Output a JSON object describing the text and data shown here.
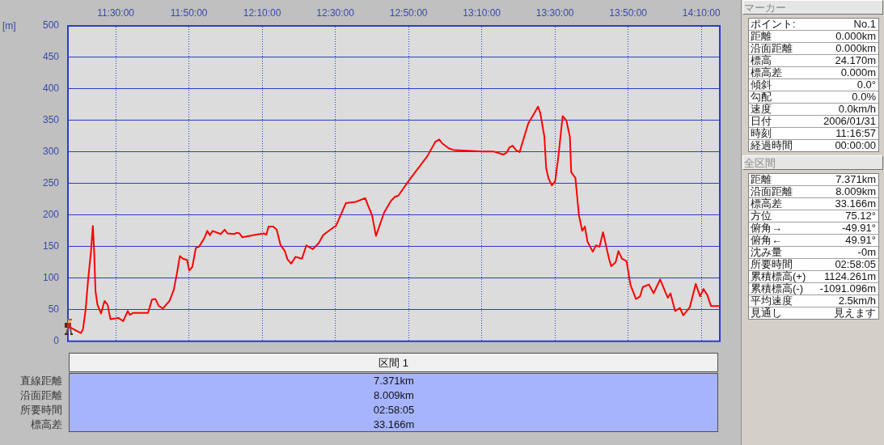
{
  "chart_data": [
    {
      "type": "line",
      "ylabel": "[m]",
      "x": [
        11.2825,
        11.341,
        11.351,
        11.363,
        11.375,
        11.387,
        11.396,
        11.402,
        11.408,
        11.417,
        11.433,
        11.449,
        11.463,
        11.476,
        11.512,
        11.534,
        11.555,
        11.564,
        11.58,
        11.647,
        11.665,
        11.681,
        11.696,
        11.715,
        11.745,
        11.764,
        11.779,
        11.792,
        11.806,
        11.825,
        11.835,
        11.849,
        11.865,
        11.88,
        11.904,
        11.917,
        11.929,
        11.941,
        11.978,
        11.996,
        12.009,
        12.039,
        12.052,
        12.064,
        12.076,
        12.125,
        12.174,
        12.186,
        12.196,
        12.217,
        12.233,
        12.25,
        12.27,
        12.282,
        12.299,
        12.319,
        12.348,
        12.368,
        12.397,
        12.425,
        12.444,
        12.458,
        12.493,
        12.503,
        12.548,
        12.593,
        12.636,
        12.648,
        12.667,
        12.685,
        12.703,
        12.722,
        12.752,
        12.771,
        12.787,
        12.833,
        12.918,
        12.955,
        12.973,
        12.986,
        13.016,
        13.041,
        13.17,
        13.219,
        13.265,
        13.28,
        13.292,
        13.307,
        13.323,
        13.339,
        13.378,
        13.403,
        13.423,
        13.433,
        13.452,
        13.46,
        13.471,
        13.486,
        13.501,
        13.515,
        13.535,
        13.552,
        13.568,
        13.574,
        13.593,
        13.609,
        13.624,
        13.636,
        13.648,
        13.672,
        13.687,
        13.703,
        13.719,
        13.746,
        13.756,
        13.776,
        13.789,
        13.805,
        13.826,
        13.844,
        13.869,
        13.887,
        13.9,
        13.928,
        13.949,
        13.979,
        14.004,
        14.014,
        14.026,
        14.047,
        14.069,
        14.084,
        14.114,
        14.141,
        14.161,
        14.176,
        14.194,
        14.21,
        14.2506
      ],
      "series": [
        {
          "color": "#ff0000",
          "values": [
            24,
            13,
            19,
            50,
            100,
            141,
            183,
            141,
            79,
            58,
            44,
            64,
            58,
            35,
            37,
            32,
            48,
            42,
            45,
            45,
            66,
            67,
            56,
            52,
            64,
            81,
            108,
            135,
            131,
            129,
            112,
            118,
            148,
            150,
            164,
            175,
            168,
            175,
            170,
            177,
            171,
            170,
            172,
            171,
            165,
            168,
            171,
            169,
            182,
            182,
            177,
            153,
            143,
            130,
            123,
            134,
            131,
            152,
            146,
            156,
            168,
            172,
            181,
            183,
            219,
            221,
            227,
            216,
            200,
            167,
            185,
            204,
            222,
            229,
            231,
            254,
            293,
            316,
            320,
            314,
            306,
            303,
            301,
            301,
            296,
            299,
            307,
            310,
            303,
            300,
            345,
            360,
            372,
            362,
            324,
            274,
            258,
            247,
            254,
            291,
            357,
            350,
            324,
            268,
            259,
            200,
            175,
            182,
            158,
            142,
            152,
            150,
            173,
            131,
            119,
            125,
            143,
            131,
            127,
            89,
            67,
            71,
            86,
            90,
            76,
            98,
            77,
            69,
            76,
            48,
            53,
            41,
            54,
            91,
            71,
            83,
            73,
            56,
            56
          ]
        }
      ],
      "xlim": [
        11.2825,
        14.2506
      ],
      "ylim": [
        0,
        500
      ],
      "xticks": [
        {
          "value": 11.5,
          "label": "11:30:00"
        },
        {
          "value": 11.8333,
          "label": "11:50:00"
        },
        {
          "value": 12.1667,
          "label": "12:10:00"
        },
        {
          "value": 12.5,
          "label": "12:30:00"
        },
        {
          "value": 12.8333,
          "label": "12:50:00"
        },
        {
          "value": 13.1667,
          "label": "13:10:00"
        },
        {
          "value": 13.5,
          "label": "13:30:00"
        },
        {
          "value": 13.8333,
          "label": "13:50:00"
        },
        {
          "value": 14.1667,
          "label": "14:10:00"
        }
      ],
      "yticks": [
        0,
        50,
        100,
        150,
        200,
        250,
        300,
        350,
        400,
        450,
        500
      ],
      "grid": true,
      "marker": "none"
    },
    {
      "type": "other",
      "title": "区間 1",
      "annotations": [
        "直線距離",
        "7.371km",
        "沿面距離",
        "8.009km",
        "所要時間",
        "02:58:05",
        "標高差",
        "33.166m"
      ]
    },
    {
      "type": "other",
      "title": "マーカー",
      "annotations": [
        "ポイント:",
        "No.1",
        "距離",
        "0.000km",
        "沿面距離",
        "0.000km",
        "標高",
        "24.170m",
        "標高差",
        "0.000m",
        "傾斜",
        "0.0°",
        "勾配",
        "0.0%",
        "速度",
        "0.0km/h",
        "日付",
        "2006/01/31",
        "時刻",
        "11:16:57",
        "経過時間",
        "00:00:00"
      ]
    },
    {
      "type": "other",
      "title": "全区間",
      "annotations": [
        "距離",
        "7.371km",
        "沿面距離",
        "8.009km",
        "標高差",
        "33.166m",
        "方位",
        "75.12°",
        "俯角→",
        "-49.91°",
        "俯角←",
        "49.91°",
        "沈み量",
        "-0m",
        "所要時間",
        "02:58:05",
        "累積標高(+)",
        "1124.261m",
        "累積標高(-)",
        "-1091.096m",
        "平均速度",
        "2.5km/h",
        "見通し",
        "見えます"
      ]
    }
  ]
}
